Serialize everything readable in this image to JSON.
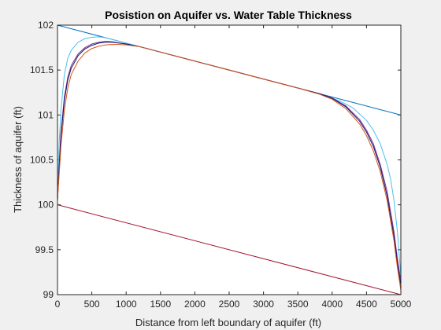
{
  "chart_data": {
    "type": "line",
    "title": "Posistion on Aquifer vs. Water Table Thickness",
    "xlabel": "Distance from left boundary of aquifer (ft)",
    "ylabel": "Thickness of aquifer (ft)",
    "xlim": [
      0,
      5000
    ],
    "ylim": [
      99,
      102
    ],
    "xticks": [
      0,
      500,
      1000,
      1500,
      2000,
      2500,
      3000,
      3500,
      4000,
      4500,
      5000
    ],
    "yticks": [
      99,
      99.5,
      100,
      100.5,
      101,
      101.5,
      102
    ],
    "ytick_labels": [
      "99",
      "99.5",
      "100",
      "100.5",
      "101",
      "101.5",
      "102"
    ],
    "grid": false,
    "legend": "none",
    "colors": {
      "upper_line": "#0072bd",
      "lower_line": "#a2142f",
      "curve_light_blue": "#4dbeee",
      "curve_purple": "#7e2f8e",
      "curve_dark_blue": "#0c1a6e",
      "curve_orange": "#d95319"
    },
    "series": [
      {
        "color": "#0072bd",
        "x": [
          0,
          5000
        ],
        "y": [
          102,
          101
        ]
      },
      {
        "color": "#a2142f",
        "x": [
          0,
          5000
        ],
        "y": [
          100,
          99
        ]
      },
      {
        "color": "#4dbeee",
        "x": [
          0,
          25,
          50,
          100,
          150,
          200,
          300,
          400,
          500,
          600,
          700,
          800,
          1000,
          1500,
          2000,
          2500,
          3000,
          3500,
          3900,
          4100,
          4300,
          4500,
          4600,
          4700,
          4800,
          4850,
          4900,
          4950,
          4975,
          5000
        ],
        "y": [
          100.05,
          100.7,
          101.05,
          101.45,
          101.63,
          101.72,
          101.81,
          101.85,
          101.865,
          101.87,
          101.86,
          101.84,
          101.8,
          101.7,
          101.6,
          101.5,
          101.4,
          101.3,
          101.215,
          101.16,
          101.08,
          100.94,
          100.83,
          100.68,
          100.45,
          100.29,
          100.05,
          99.7,
          99.45,
          99.2
        ]
      },
      {
        "color": "#7e2f8e",
        "x": [
          0,
          25,
          50,
          100,
          150,
          200,
          300,
          400,
          500,
          600,
          700,
          800,
          900,
          1000,
          1200,
          1500,
          2000,
          2500,
          3000,
          3500,
          3800,
          4000,
          4200,
          4400,
          4500,
          4600,
          4700,
          4800,
          4900,
          4950,
          5000
        ],
        "y": [
          100.05,
          100.45,
          100.8,
          101.2,
          101.42,
          101.55,
          101.68,
          101.75,
          101.79,
          101.81,
          101.82,
          101.815,
          101.8,
          101.79,
          101.76,
          101.7,
          101.6,
          101.5,
          101.4,
          101.3,
          101.24,
          101.19,
          101.1,
          100.95,
          100.83,
          100.68,
          100.45,
          100.15,
          99.7,
          99.4,
          99.15
        ]
      },
      {
        "color": "#0c1a6e",
        "x": [
          0,
          25,
          50,
          100,
          150,
          200,
          300,
          400,
          500,
          600,
          700,
          800,
          900,
          1000,
          1200,
          1500,
          2000,
          2500,
          3000,
          3500,
          3800,
          4000,
          4200,
          4400,
          4500,
          4600,
          4700,
          4800,
          4900,
          4950,
          5000
        ],
        "y": [
          100.05,
          100.42,
          100.76,
          101.16,
          101.39,
          101.52,
          101.66,
          101.735,
          101.775,
          101.8,
          101.81,
          101.81,
          101.8,
          101.79,
          101.76,
          101.7,
          101.6,
          101.5,
          101.4,
          101.3,
          101.24,
          101.185,
          101.09,
          100.93,
          100.81,
          100.65,
          100.42,
          100.1,
          99.65,
          99.35,
          99.1
        ]
      },
      {
        "color": "#d95319",
        "x": [
          0,
          25,
          50,
          100,
          150,
          200,
          300,
          400,
          500,
          600,
          700,
          800,
          900,
          1000,
          1200,
          1500,
          2000,
          2500,
          3000,
          3500,
          3800,
          4000,
          4200,
          4400,
          4500,
          4600,
          4700,
          4800,
          4900,
          4950,
          5000
        ],
        "y": [
          100.05,
          100.35,
          100.65,
          101.05,
          101.3,
          101.45,
          101.6,
          101.69,
          101.74,
          101.765,
          101.78,
          101.785,
          101.785,
          101.78,
          101.76,
          101.7,
          101.6,
          101.5,
          101.4,
          101.3,
          101.235,
          101.175,
          101.07,
          100.9,
          100.77,
          100.6,
          100.37,
          100.05,
          99.6,
          99.3,
          99.05
        ]
      }
    ]
  }
}
